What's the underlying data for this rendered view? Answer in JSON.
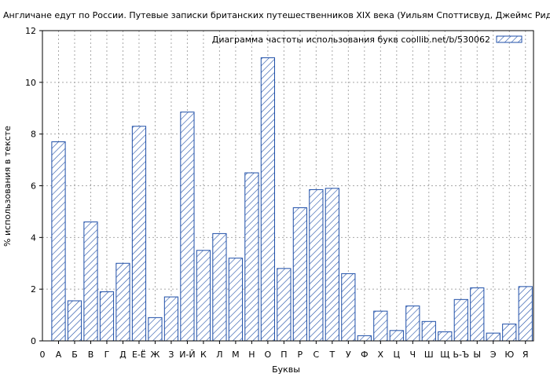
{
  "chart_data": {
    "type": "bar",
    "title": "Англичане едут по России. Путевые записки британских путешественников XIX века (Уильям Споттисвуд, Джеймс Ридли и д",
    "xlabel": "Буквы",
    "ylabel": "% использования в тексте",
    "ylim": [
      0,
      12
    ],
    "yticks": [
      "0",
      "2",
      "4",
      "6",
      "8",
      "10",
      "12"
    ],
    "grid": true,
    "legend_position": "top-right",
    "series": [
      {
        "name": "Диаграмма частоты использования букв  coollib.net/b/530062",
        "color": "#1f4fa8",
        "fill_pattern": "diagonal-hatch"
      }
    ],
    "axis_start_label": "0",
    "categories": [
      "А",
      "Б",
      "В",
      "Г",
      "Д",
      "Е-Ё",
      "Ж",
      "З",
      "И-Й",
      "К",
      "Л",
      "М",
      "Н",
      "О",
      "П",
      "Р",
      "С",
      "Т",
      "У",
      "Ф",
      "Х",
      "Ц",
      "Ч",
      "Ш",
      "Щ",
      "Ь-Ъ",
      "Ы",
      "Э",
      "Ю",
      "Я"
    ],
    "values": [
      7.7,
      1.55,
      4.6,
      1.9,
      3.0,
      8.3,
      0.9,
      1.7,
      8.85,
      3.5,
      4.15,
      3.2,
      6.5,
      10.95,
      2.8,
      5.15,
      5.85,
      5.9,
      2.6,
      0.2,
      1.15,
      0.4,
      1.35,
      0.75,
      0.35,
      1.6,
      2.05,
      0.3,
      0.65,
      2.1
    ]
  }
}
